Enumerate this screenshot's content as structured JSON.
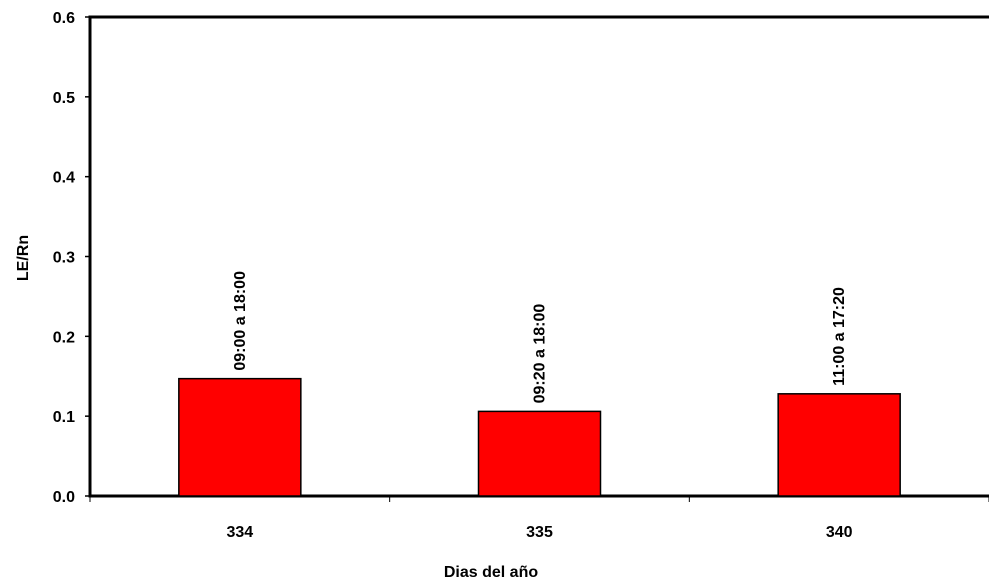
{
  "chart_data": {
    "type": "bar",
    "title": "",
    "xlabel": "Dias del año",
    "ylabel": "LE/Rn",
    "categories": [
      "334",
      "335",
      "340"
    ],
    "values": [
      0.147,
      0.106,
      0.128
    ],
    "bar_labels": [
      "09:00 a 18:00",
      "09:20 a 18:00",
      "11:00 a 17:20"
    ],
    "ylim": [
      0,
      0.6
    ],
    "yticks": [
      "0.0",
      "0.1",
      "0.2",
      "0.3",
      "0.4",
      "0.5",
      "0.6"
    ],
    "grid": false,
    "legend": "none",
    "bar_color": "#ff0000",
    "bar_edge_color": "#000000"
  }
}
